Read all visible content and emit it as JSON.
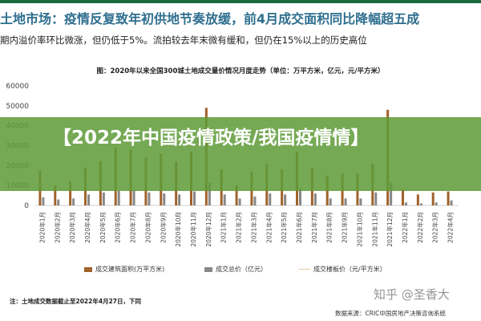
{
  "headline": "土地市场：疫情反复致年初供地节奏放缓，前4月成交面积同比降幅超五成",
  "subhead": "期内溢价率环比微涨，但仍低于5%。流拍较去年末微有缓和，但仍在15%以上的历史高位",
  "overlay": {
    "text": "【2022年中国疫情政策/我国疫情情】"
  },
  "note": "注：土地成交数据截止至2022年4月27日，下同",
  "source": "数据来源：CRIC中国房地产决策咨询系统",
  "watermark": "知乎 @圣香大",
  "colors": {
    "bar_area": "#a0622a",
    "bar_price": "#888888",
    "line_price": "#e8c9a8",
    "overlay": "#5e9b38",
    "headline": "#2e6e8e"
  },
  "chart_data": {
    "type": "bar",
    "title": "图：2020年以来全国300城土地成交量价情况月度走势（单位：万平方米，亿元，元/平方米）",
    "categories": [
      "2020年1月",
      "2020年2月",
      "2020年3月",
      "2020年4月",
      "2020年5月",
      "2020年6月",
      "2020年7月",
      "2020年8月",
      "2020年9月",
      "2020年10月",
      "2020年11月",
      "2020年12月",
      "2021年1月",
      "2021年2月",
      "2021年3月",
      "2021年4月",
      "2021年5月",
      "2021年6月",
      "2021年7月",
      "2021年8月",
      "2021年9月",
      "2021年10月",
      "2021年11月",
      "2021年12月",
      "2022年1月",
      "2022年2月",
      "2022年3月",
      "2022年4月"
    ],
    "y_ticks": [
      "0",
      "10000",
      "20000",
      "30000",
      "40000",
      "50000",
      "60000"
    ],
    "ylim": [
      0,
      60000
    ],
    "series": [
      {
        "name": "成交建筑面积(万平方米)",
        "kind": "bar",
        "values": [
          17500,
          10000,
          12000,
          19000,
          22000,
          29000,
          28000,
          24000,
          26000,
          22000,
          27000,
          49000,
          18000,
          10000,
          17000,
          21000,
          18000,
          27000,
          19000,
          15000,
          16000,
          16000,
          21000,
          48000,
          8000,
          5500,
          6500,
          7000
        ]
      },
      {
        "name": "成交总价（亿元）",
        "kind": "bar",
        "values": [
          4000,
          3000,
          3500,
          5500,
          6500,
          7500,
          7500,
          6500,
          6000,
          5500,
          7000,
          11500,
          5500,
          3500,
          4500,
          6000,
          5500,
          8500,
          6000,
          3500,
          3500,
          3500,
          6500,
          11500,
          1500,
          1000,
          1500,
          2500
        ]
      },
      {
        "name": "成交楼板价（元/平方米）",
        "kind": "line",
        "values": [
          null,
          null,
          null,
          null,
          null,
          null,
          null,
          null,
          null,
          null,
          null,
          null,
          null,
          null,
          null,
          null,
          null,
          null,
          null,
          null,
          null,
          null,
          null,
          null,
          null,
          null,
          null,
          null
        ]
      }
    ],
    "legend_position": "bottom",
    "grid": false
  }
}
